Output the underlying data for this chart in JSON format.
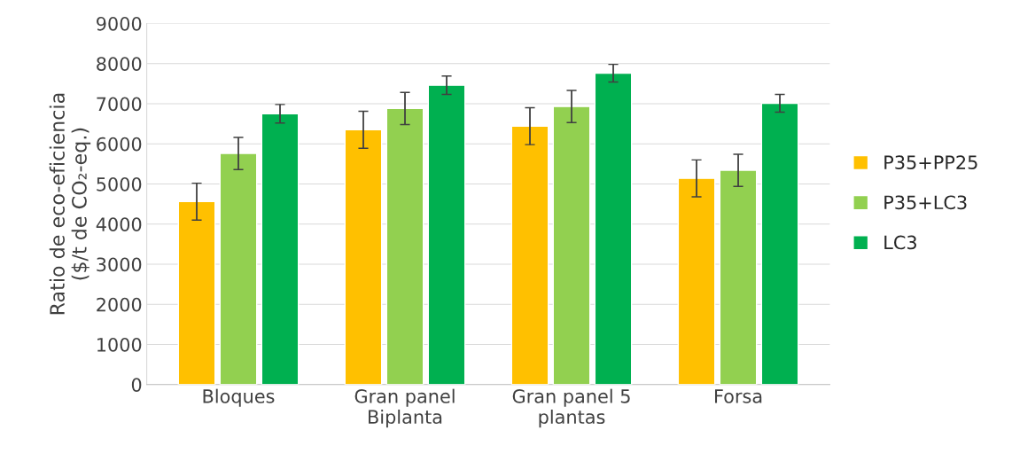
{
  "chart_data": {
    "type": "bar",
    "ylabel": "Ratio de eco-eficiencia\n($/t de CO₂-eq.)",
    "categories": [
      "Bloques",
      "Gran panel\nBiplanta",
      "Gran panel 5\nplantas",
      "Forsa"
    ],
    "series": [
      {
        "name": "P35+PP25",
        "color": "#ffc000",
        "values": [
          4560,
          6350,
          6440,
          5140
        ],
        "errors": [
          460,
          460,
          460,
          460
        ]
      },
      {
        "name": "P35+LC3",
        "color": "#92d050",
        "values": [
          5760,
          6880,
          6930,
          5340
        ],
        "errors": [
          400,
          400,
          400,
          400
        ]
      },
      {
        "name": "LC3",
        "color": "#00b050",
        "values": [
          6750,
          7460,
          7760,
          7010
        ],
        "errors": [
          230,
          230,
          220,
          220
        ]
      }
    ],
    "ylim": [
      0,
      9000
    ],
    "yticks": [
      0,
      1000,
      2000,
      3000,
      4000,
      5000,
      6000,
      7000,
      8000,
      9000
    ],
    "grid": "y",
    "legend": "right"
  }
}
